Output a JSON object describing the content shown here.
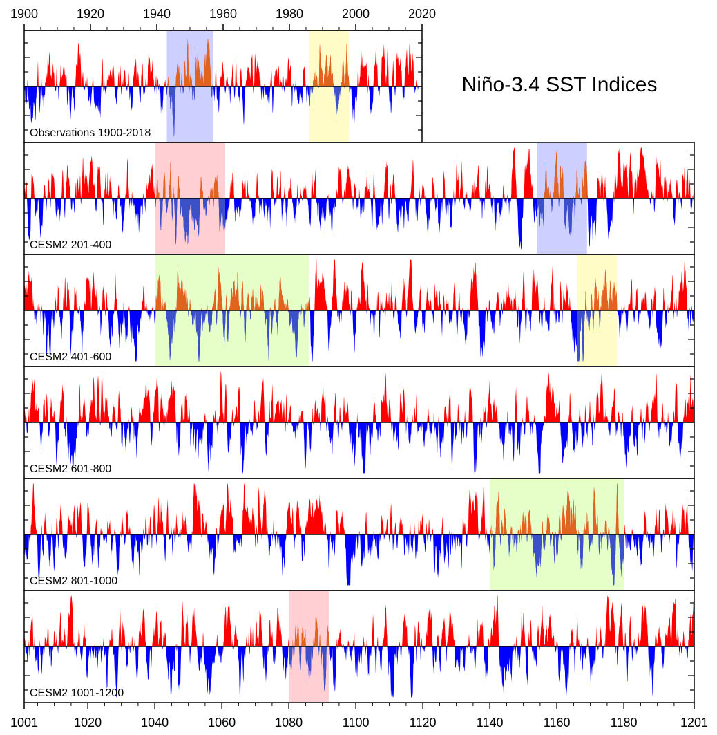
{
  "title": "Niño-3.4 SST Indices",
  "colors": {
    "positive": "#ff0000",
    "negative": "#0000ff",
    "shade_red": "#ffcfd3",
    "shade_blue": "#cdd0ff",
    "shade_yellow": "#fffcc8",
    "shade_green": "#e6ffc8",
    "overlap_pos": "#e0641e",
    "overlap_neg": "#3c50c8"
  },
  "chart_data": {
    "type": "area",
    "title": "Niño-3.4 SST Indices",
    "top_axis": {
      "range": [
        1900,
        2020
      ],
      "ticks": [
        "1900",
        "1920",
        "1940",
        "1960",
        "1980",
        "2000",
        "2020"
      ]
    },
    "bottom_axis": {
      "range": [
        1001,
        1201
      ],
      "ticks": [
        "1001",
        "1020",
        "1040",
        "1060",
        "1080",
        "1100",
        "1120",
        "1140",
        "1160",
        "1180",
        "1201"
      ]
    },
    "panels": [
      {
        "label": "Observations 1900-2018",
        "x_range": [
          1900,
          2018
        ],
        "axis_span": [
          1900,
          2020
        ],
        "shading": [
          {
            "from": 1943,
            "to": 1957,
            "color": "shade_blue"
          },
          {
            "from": 1986,
            "to": 1998,
            "color": "shade_yellow"
          }
        ]
      },
      {
        "label": "CESM2 201-400",
        "x_range": [
          201,
          400
        ],
        "axis_span": [
          201,
          401
        ],
        "shading": [
          {
            "from": 240,
            "to": 261,
            "color": "shade_red"
          },
          {
            "from": 354,
            "to": 369,
            "color": "shade_blue"
          }
        ]
      },
      {
        "label": "CESM2 401-600",
        "x_range": [
          401,
          600
        ],
        "axis_span": [
          401,
          601
        ],
        "shading": [
          {
            "from": 440,
            "to": 486,
            "color": "shade_green"
          },
          {
            "from": 566,
            "to": 578,
            "color": "shade_yellow"
          }
        ]
      },
      {
        "label": "CESM2 601-800",
        "x_range": [
          601,
          800
        ],
        "axis_span": [
          601,
          801
        ],
        "shading": []
      },
      {
        "label": "CESM2 801-1000",
        "x_range": [
          801,
          1000
        ],
        "axis_span": [
          801,
          1001
        ],
        "shading": [
          {
            "from": 940,
            "to": 980,
            "color": "shade_green"
          }
        ]
      },
      {
        "label": "CESM2 1001-1200",
        "x_range": [
          1001,
          1200
        ],
        "axis_span": [
          1001,
          1201
        ],
        "shading": [
          {
            "from": 1080,
            "to": 1092,
            "color": "shade_red"
          }
        ]
      }
    ]
  }
}
